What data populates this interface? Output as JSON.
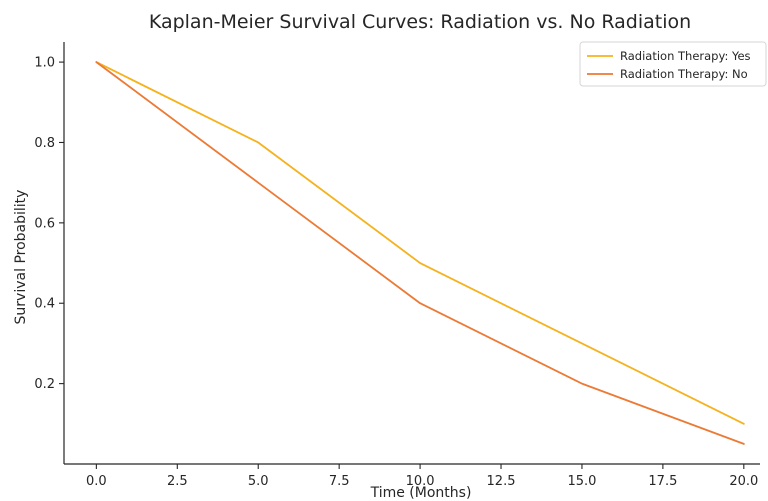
{
  "chart_data": {
    "type": "line",
    "title": "Kaplan-Meier Survival Curves: Radiation vs. No Radiation",
    "xlabel": "Time (Months)",
    "ylabel": "Survival Probability",
    "x": [
      0,
      5,
      10,
      15,
      20
    ],
    "series": [
      {
        "name": "Radiation Therapy: Yes",
        "color": "#f5b21e",
        "values": [
          1.0,
          0.8,
          0.5,
          0.3,
          0.1
        ]
      },
      {
        "name": "Radiation Therapy: No",
        "color": "#ec7a35",
        "values": [
          1.0,
          0.7,
          0.4,
          0.2,
          0.05
        ]
      }
    ],
    "xlim": [
      -1,
      20.5
    ],
    "ylim": [
      0.0,
      1.05
    ],
    "xticks": [
      0.0,
      2.5,
      5.0,
      7.5,
      10.0,
      12.5,
      15.0,
      17.5,
      20.0
    ],
    "xtick_labels": [
      "0.0",
      "2.5",
      "5.0",
      "7.5",
      "10.0",
      "12.5",
      "15.0",
      "17.5",
      "20.0"
    ],
    "yticks": [
      0.2,
      0.4,
      0.6,
      0.8,
      1.0
    ],
    "ytick_labels": [
      "0.2",
      "0.4",
      "0.6",
      "0.8",
      "1.0"
    ],
    "grid": false,
    "legend_position": "top-right"
  }
}
